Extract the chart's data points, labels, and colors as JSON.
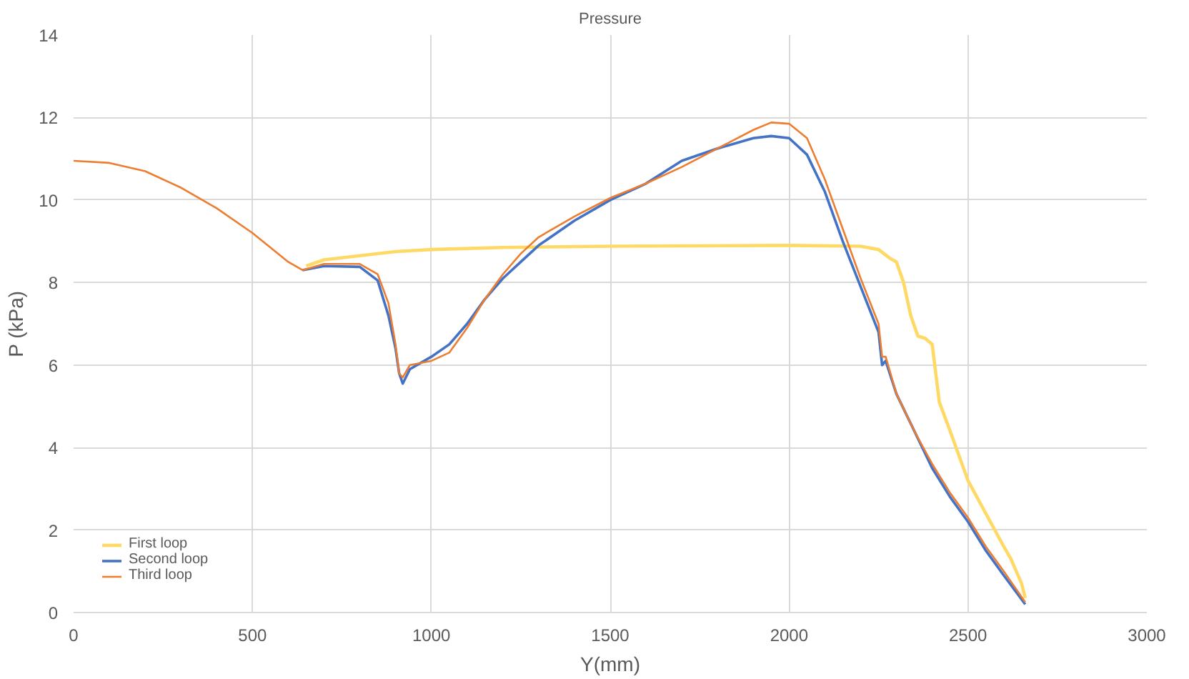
{
  "chart_data": {
    "type": "line",
    "title": "Pressure",
    "xlabel": "Y(mm)",
    "ylabel": "P (kPa)",
    "xlim": [
      0,
      3000
    ],
    "xticks": [
      0,
      500,
      1000,
      1500,
      2000,
      2500,
      3000
    ],
    "ylim": [
      0,
      14
    ],
    "yticks": [
      0,
      2,
      4,
      6,
      8,
      10,
      12,
      14
    ],
    "grid": true,
    "legend": "bottom left",
    "marker": "none",
    "line_style": "solid",
    "series": [
      {
        "name": "First loop",
        "color": "#ffd966",
        "x": [
          650,
          700,
          800,
          900,
          1000,
          1200,
          1500,
          2000,
          2200,
          2250,
          2280,
          2300,
          2320,
          2340,
          2360,
          2380,
          2400,
          2420,
          2450,
          2500,
          2550,
          2600,
          2620,
          2650,
          2660
        ],
        "values": [
          8.4,
          8.55,
          8.65,
          8.75,
          8.8,
          8.85,
          8.88,
          8.9,
          8.88,
          8.8,
          8.6,
          8.5,
          8.0,
          7.2,
          6.7,
          6.65,
          6.5,
          5.1,
          4.4,
          3.2,
          2.4,
          1.6,
          1.3,
          0.7,
          0.35
        ]
      },
      {
        "name": "Second loop",
        "color": "#4472c4",
        "x": [
          640,
          700,
          800,
          850,
          880,
          900,
          910,
          920,
          940,
          1000,
          1050,
          1100,
          1150,
          1200,
          1250,
          1300,
          1400,
          1500,
          1600,
          1700,
          1800,
          1900,
          1950,
          2000,
          2050,
          2100,
          2150,
          2200,
          2250,
          2260,
          2270,
          2300,
          2350,
          2400,
          2450,
          2500,
          2550,
          2600,
          2660
        ],
        "values": [
          8.3,
          8.4,
          8.38,
          8.05,
          7.2,
          6.4,
          5.8,
          5.55,
          5.9,
          6.2,
          6.5,
          7.0,
          7.6,
          8.1,
          8.5,
          8.9,
          9.5,
          10.0,
          10.4,
          10.95,
          11.25,
          11.5,
          11.55,
          11.5,
          11.1,
          10.2,
          9.0,
          7.9,
          6.8,
          6.0,
          6.1,
          5.3,
          4.4,
          3.5,
          2.8,
          2.2,
          1.5,
          0.9,
          0.2
        ]
      },
      {
        "name": "Third loop",
        "color": "#ed7d31",
        "x": [
          0,
          100,
          200,
          300,
          400,
          500,
          600,
          640,
          700,
          800,
          850,
          880,
          900,
          910,
          920,
          940,
          1000,
          1050,
          1100,
          1150,
          1200,
          1250,
          1300,
          1400,
          1500,
          1600,
          1700,
          1800,
          1900,
          1950,
          2000,
          2050,
          2100,
          2150,
          2200,
          2250,
          2260,
          2270,
          2300,
          2350,
          2400,
          2450,
          2500,
          2550,
          2600,
          2660
        ],
        "values": [
          10.95,
          10.9,
          10.7,
          10.3,
          9.8,
          9.2,
          8.5,
          8.3,
          8.45,
          8.45,
          8.2,
          7.5,
          6.5,
          5.8,
          5.7,
          6.0,
          6.1,
          6.3,
          6.9,
          7.6,
          8.2,
          8.7,
          9.1,
          9.6,
          10.05,
          10.4,
          10.8,
          11.25,
          11.7,
          11.88,
          11.85,
          11.5,
          10.5,
          9.3,
          8.1,
          7.0,
          6.2,
          6.2,
          5.3,
          4.4,
          3.6,
          2.9,
          2.3,
          1.6,
          1.0,
          0.25
        ]
      }
    ]
  }
}
